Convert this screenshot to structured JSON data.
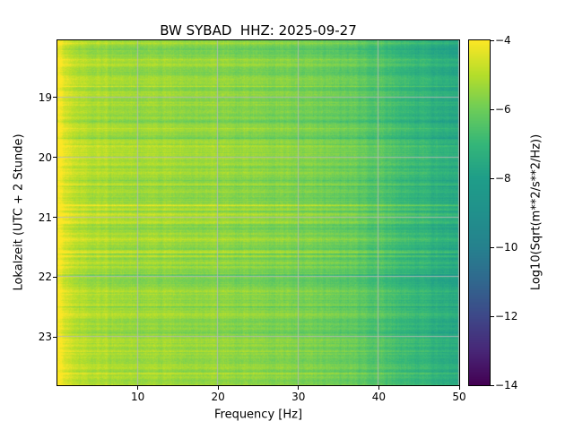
{
  "chart_data": {
    "type": "heatmap",
    "subtype": "spectrogram",
    "title": "BW SYBAD  HHZ: 2025-09-27",
    "xlabel": "Frequency [Hz]",
    "ylabel": "Lokalzeit (UTC + 2 Stunde)",
    "x_range": [
      0,
      50
    ],
    "x_ticks": [
      10,
      20,
      30,
      40,
      50
    ],
    "y_range": [
      18.05,
      23.8
    ],
    "y_ticks": [
      19,
      20,
      21,
      22,
      23
    ],
    "grid": true,
    "grid_color": "#b8b8b8",
    "background": "#ffffff",
    "colorbar": {
      "label": "Log10(Sqrt(m**2/s**2/Hz))",
      "range": [
        -14,
        -4
      ],
      "ticks": [
        -4,
        -6,
        -8,
        -10,
        -12,
        -14
      ],
      "tick_labels": [
        "−4",
        "−6",
        "−8",
        "−10",
        "−12",
        "−14"
      ],
      "colormap": "viridis"
    },
    "colormap_stops": [
      [
        0.0,
        "#440154"
      ],
      [
        0.1,
        "#482878"
      ],
      [
        0.2,
        "#3e4989"
      ],
      [
        0.3,
        "#31688e"
      ],
      [
        0.4,
        "#26828e"
      ],
      [
        0.5,
        "#21918c"
      ],
      [
        0.6,
        "#1f9e89"
      ],
      [
        0.7,
        "#35b779"
      ],
      [
        0.8,
        "#6dcd59"
      ],
      [
        0.9,
        "#b5de2b"
      ],
      [
        1.0,
        "#fde725"
      ]
    ],
    "spectrum_profile": {
      "freqs_hz": [
        0,
        0.5,
        1.5,
        3,
        5,
        10,
        15,
        20,
        25,
        30,
        35,
        40,
        45,
        50
      ],
      "log_amplitude": [
        -4.0,
        -4.2,
        -4.7,
        -5.0,
        -5.2,
        -5.35,
        -5.45,
        -5.55,
        -5.65,
        -5.8,
        -6.1,
        -6.5,
        -7.1,
        -7.6
      ]
    },
    "time_band_variability": 0.5,
    "pixel_noise": 0.18,
    "noise_seed": 20250927
  }
}
